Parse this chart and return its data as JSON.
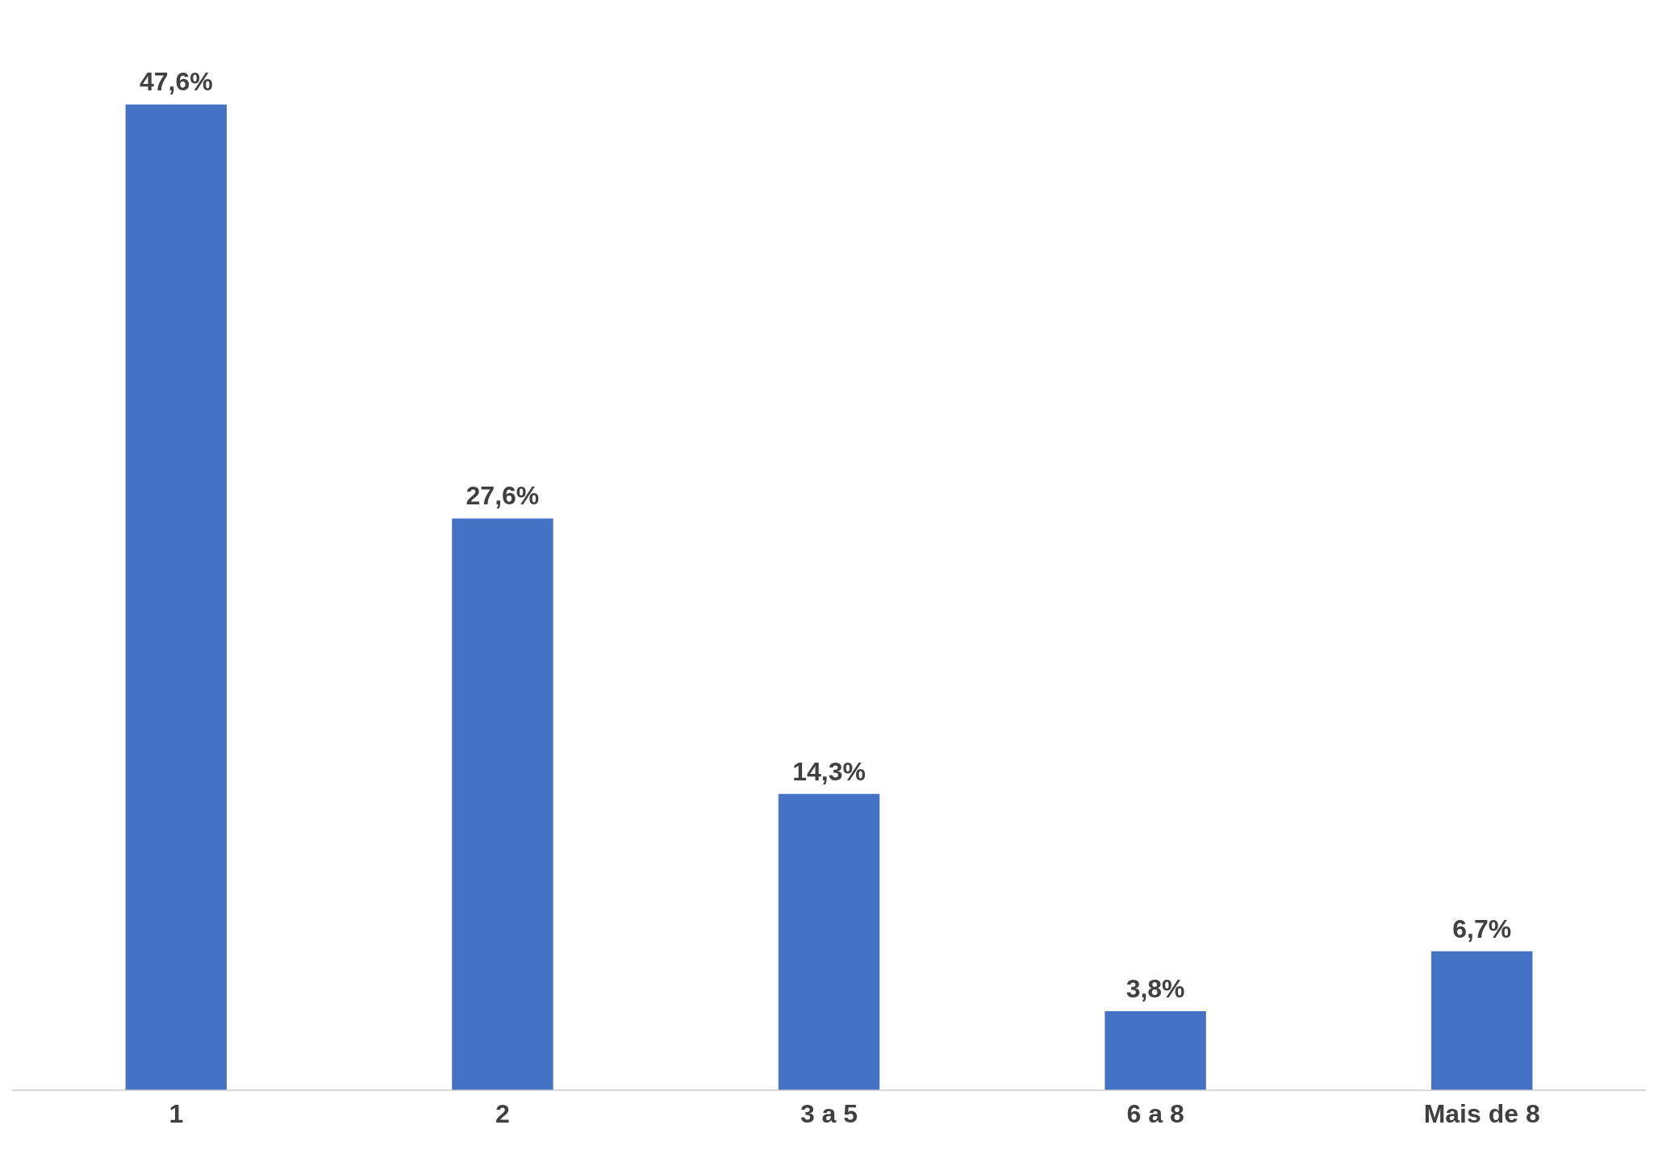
{
  "chart_data": {
    "type": "bar",
    "categories": [
      "1",
      "2",
      "3 a 5",
      "6 a 8",
      "Mais de 8"
    ],
    "values": [
      47.6,
      27.6,
      14.3,
      3.8,
      6.7
    ],
    "value_labels": [
      "47,6%",
      "27,6%",
      "14,3%",
      "3,8%",
      "6,7%"
    ],
    "color": "#4472c4",
    "grid": false,
    "legend": false
  }
}
